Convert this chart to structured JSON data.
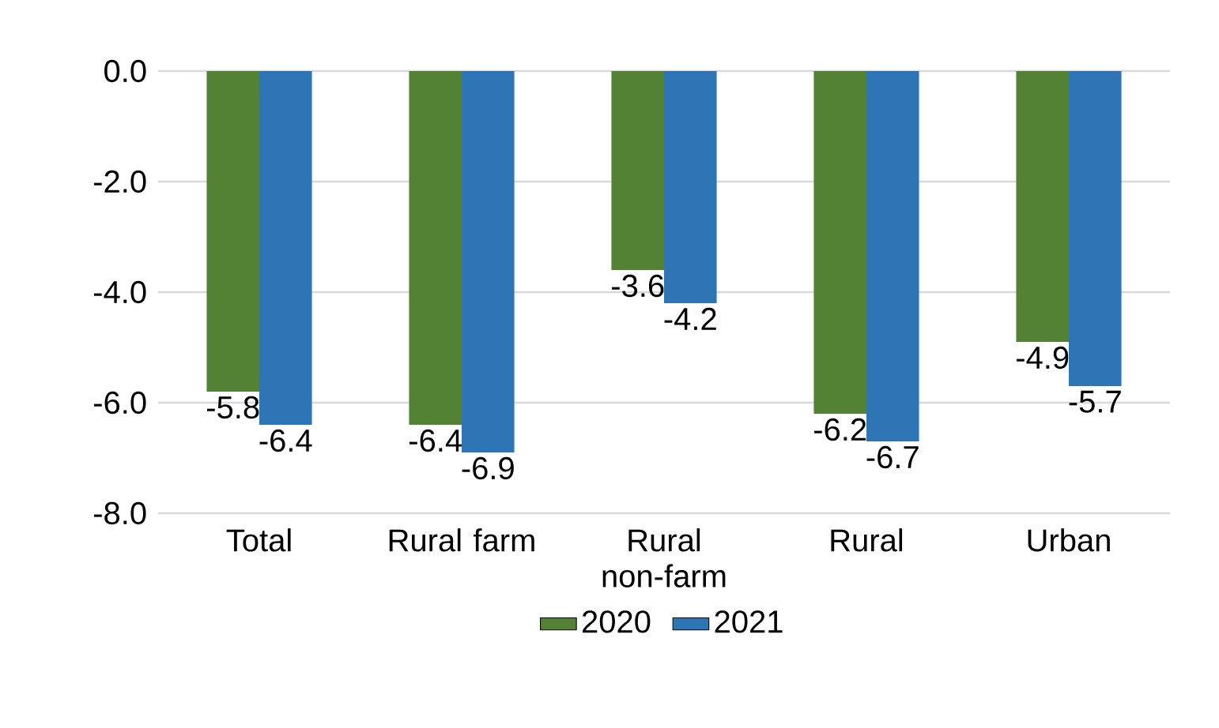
{
  "chart_data": {
    "type": "bar",
    "categories": [
      "Total",
      "Rural farm",
      "Rural non-farm",
      "Rural",
      "Urban"
    ],
    "series": [
      {
        "name": "2020",
        "color": "#548235",
        "values": [
          -5.8,
          -6.4,
          -3.6,
          -6.2,
          -4.9
        ],
        "value_labels": [
          "-5.8",
          "-6.4",
          "-3.6",
          "-6.2",
          "-4.9"
        ]
      },
      {
        "name": "2021",
        "color": "#2e75b6",
        "values": [
          -6.4,
          -6.9,
          -4.2,
          -6.7,
          -5.7
        ],
        "value_labels": [
          "-6.4",
          "-6.9",
          "-4.2",
          "-6.7",
          "-5.7"
        ]
      }
    ],
    "ylim": [
      -8,
      0
    ],
    "yticks": [
      {
        "value": 0,
        "label": "0.0"
      },
      {
        "value": -2,
        "label": "-2.0"
      },
      {
        "value": -4,
        "label": "-4.0"
      },
      {
        "value": -6,
        "label": "-6.0"
      },
      {
        "value": -8,
        "label": "-8.0"
      }
    ],
    "grid": "y",
    "legend": "bottom"
  }
}
